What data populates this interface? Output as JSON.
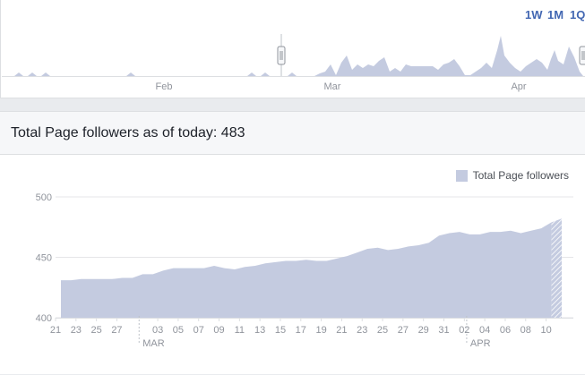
{
  "navigator": {
    "range_buttons": [
      "1W",
      "1M",
      "1Q"
    ],
    "month_labels": [
      "Feb",
      "Mar",
      "Apr"
    ],
    "fill_color": "#c4cbe0"
  },
  "header": {
    "title": "Total Page followers as of today: 483"
  },
  "chart_data": {
    "type": "area",
    "title": "Total Page followers as of today: 483",
    "xlabel": "",
    "ylabel": "",
    "ylim": [
      400,
      500
    ],
    "y_ticks": [
      "400",
      "450",
      "500"
    ],
    "x_tick_labels": [
      "21",
      "23",
      "25",
      "27",
      "03",
      "05",
      "07",
      "09",
      "11",
      "13",
      "15",
      "17",
      "19",
      "21",
      "23",
      "25",
      "27",
      "29",
      "31",
      "02",
      "04",
      "06",
      "08",
      "10"
    ],
    "month_labels": [
      "MAR",
      "APR"
    ],
    "legend": "top-right",
    "grid": true,
    "fill_color": "#c4cbe0",
    "series": [
      {
        "name": "Total Page followers",
        "x": [
          "Feb 21",
          "Feb 22",
          "Feb 23",
          "Feb 24",
          "Feb 25",
          "Feb 26",
          "Feb 27",
          "Feb 28",
          "Mar 01",
          "Mar 02",
          "Mar 03",
          "Mar 04",
          "Mar 05",
          "Mar 06",
          "Mar 07",
          "Mar 08",
          "Mar 09",
          "Mar 10",
          "Mar 11",
          "Mar 12",
          "Mar 13",
          "Mar 14",
          "Mar 15",
          "Mar 16",
          "Mar 17",
          "Mar 18",
          "Mar 19",
          "Mar 20",
          "Mar 21",
          "Mar 22",
          "Mar 23",
          "Mar 24",
          "Mar 25",
          "Mar 26",
          "Mar 27",
          "Mar 28",
          "Mar 29",
          "Mar 30",
          "Mar 31",
          "Apr 01",
          "Apr 02",
          "Apr 03",
          "Apr 04",
          "Apr 05",
          "Apr 06",
          "Apr 07",
          "Apr 08",
          "Apr 09",
          "Apr 10",
          "Apr 11"
        ],
        "values": [
          431,
          431,
          432,
          432,
          432,
          432,
          433,
          433,
          436,
          436,
          439,
          441,
          441,
          441,
          441,
          443,
          441,
          440,
          442,
          443,
          445,
          446,
          447,
          447,
          448,
          447,
          447,
          449,
          451,
          454,
          457,
          458,
          456,
          457,
          459,
          460,
          462,
          468,
          470,
          471,
          469,
          469,
          471,
          471,
          472,
          470,
          472,
          474,
          479,
          482
        ]
      }
    ]
  }
}
